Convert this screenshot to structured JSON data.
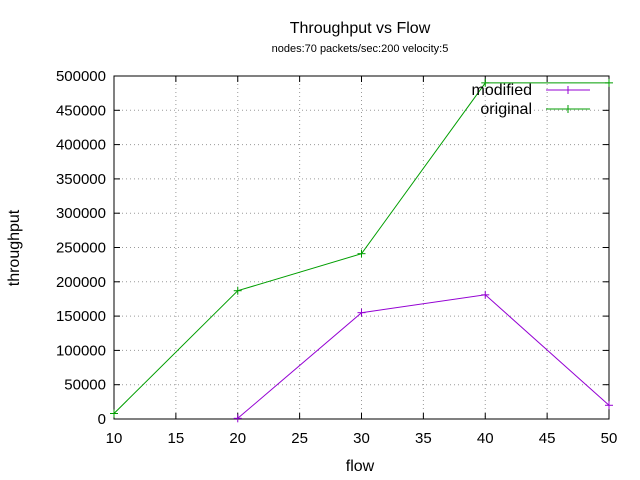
{
  "chart_data": {
    "type": "line",
    "title": "Throughput vs Flow",
    "subtitle": "nodes:70  packets/sec:200 velocity:5",
    "xlabel": "flow",
    "ylabel": "throughput",
    "xlim": [
      10,
      50
    ],
    "ylim": [
      0,
      500000
    ],
    "xticks": [
      10,
      15,
      20,
      25,
      30,
      35,
      40,
      45,
      50
    ],
    "yticks": [
      0,
      50000,
      100000,
      150000,
      200000,
      250000,
      300000,
      350000,
      400000,
      450000,
      500000
    ],
    "grid": true,
    "legend_position": "top-right",
    "series": [
      {
        "name": "modified",
        "color": "#9400d3",
        "x": [
          20,
          30,
          40,
          50
        ],
        "y": [
          1000,
          155000,
          181000,
          20000
        ]
      },
      {
        "name": "original",
        "color": "#009e00",
        "x": [
          10,
          20,
          30,
          40,
          50
        ],
        "y": [
          8000,
          187000,
          241000,
          490000,
          490000
        ]
      }
    ]
  }
}
